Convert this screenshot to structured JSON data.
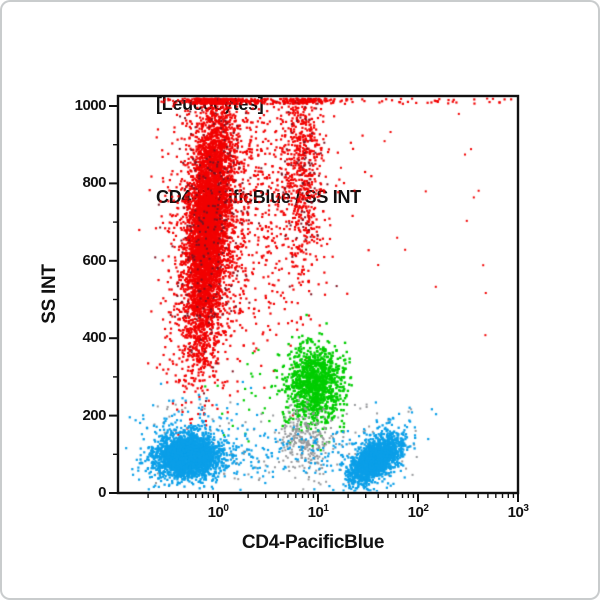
{
  "chart_data": {
    "type": "scatter",
    "title": "[Leucocytes]",
    "subtitle": "CD4-PacificBlue / SS INT",
    "xlabel": "CD4-PacificBlue",
    "ylabel": "SS INT",
    "x_scale": "log10",
    "x_range": [
      0.1,
      1000
    ],
    "x_tick_base": "10",
    "x_tick_exponents": [
      0,
      1,
      2,
      3
    ],
    "y_scale": "linear",
    "y_range": [
      0,
      1023
    ],
    "y_major_ticks": [
      0,
      200,
      400,
      600,
      800,
      1000
    ],
    "y_minor_step": 100,
    "grid": false,
    "legend": false,
    "colors": {
      "granulocytes": "#f20000",
      "doublets_dark": "#7d1220",
      "monocytes": "#00cd00",
      "lymphocytes": "#0b9fe8",
      "debris": "#97999c",
      "axis": "#111111",
      "frame": "#c9cccd"
    },
    "populations": [
      {
        "name": "red-scatter",
        "color": "#f20000",
        "n": 780,
        "size": 2.2,
        "pileup": true,
        "log": {
          "type": "gauss",
          "mean": 0.37,
          "sd": 0.37
        },
        "ss": {
          "type": "gauss",
          "mean": 760,
          "sd": 195
        }
      },
      {
        "name": "eosinophils-column",
        "color": "#f20000",
        "n": 620,
        "size": 2.2,
        "pileup": true,
        "log": {
          "type": "gauss",
          "mean": 0.84,
          "sd": 0.105
        },
        "ss": {
          "type": "gauss",
          "mean": 845,
          "sd": 135
        }
      },
      {
        "name": "eosinophils-dark",
        "color": "#7d1220",
        "n": 90,
        "size": 2.0,
        "pileup": true,
        "log": {
          "type": "gauss",
          "mean": 0.85,
          "sd": 0.12
        },
        "ss": {
          "type": "gauss",
          "mean": 840,
          "sd": 150
        }
      },
      {
        "name": "granulocytes-halo",
        "color": "#f20000",
        "n": 1700,
        "size": 2.2,
        "pileup": true,
        "tilt_log_per_ss": 0.00028,
        "log": {
          "type": "gauss",
          "mean": -0.1,
          "sd": 0.175
        },
        "ss": {
          "type": "gauss",
          "mean": 680,
          "sd": 185
        }
      },
      {
        "name": "granulocytes-core",
        "color": "#f20000",
        "n": 4200,
        "size": 2.2,
        "pileup": true,
        "tilt_log_per_ss": 0.00028,
        "log": {
          "type": "gauss",
          "mean": -0.1,
          "sd": 0.095
        },
        "ss": {
          "type": "gauss",
          "mean": 690,
          "sd": 165
        }
      },
      {
        "name": "granulocyte-doublets-dark",
        "color": "#7d1220",
        "n": 260,
        "size": 2.0,
        "pileup": true,
        "tilt_log_per_ss": 0.00028,
        "log": {
          "type": "gauss",
          "mean": -0.07,
          "sd": 0.19
        },
        "ss": {
          "type": "gauss",
          "mean": 700,
          "sd": 190
        }
      },
      {
        "name": "offscale-pileup-row",
        "color": "#f20000",
        "n": 240,
        "size": 2.2,
        "log": {
          "type": "mix",
          "comps": [
            {
              "w": 0.5,
              "type": "gauss",
              "mean": -0.04,
              "sd": 0.14
            },
            {
              "w": 0.27,
              "type": "gauss",
              "mean": 0.84,
              "sd": 0.2
            },
            {
              "w": 0.23,
              "type": "uniform",
              "min": -0.5,
              "max": 2.97
            }
          ]
        },
        "ss": {
          "type": "uniform",
          "min": 1005,
          "max": 1020
        }
      },
      {
        "name": "red-rare",
        "color": "#f20000",
        "n": 18,
        "size": 2.0,
        "log": {
          "type": "uniform",
          "min": 1.1,
          "max": 2.7
        },
        "ss": {
          "type": "uniform",
          "min": 380,
          "max": 980
        }
      },
      {
        "name": "monocyte-stragglers",
        "color": "#00cd00",
        "n": 45,
        "size": 2.2,
        "log": {
          "type": "gauss",
          "mean": 0.55,
          "sd": 0.3
        },
        "ss": {
          "type": "gauss",
          "mean": 235,
          "sd": 60
        }
      },
      {
        "name": "monocytes",
        "color": "#00cd00",
        "n": 1150,
        "size": 2.4,
        "log": {
          "type": "gauss",
          "mean": 0.97,
          "sd": 0.135
        },
        "ss": {
          "type": "gauss",
          "mean": 280,
          "sd": 52
        }
      },
      {
        "name": "debris-gray",
        "color": "#97999c",
        "n": 260,
        "size": 2.0,
        "log": {
          "type": "gauss",
          "mean": 0.88,
          "sd": 0.14
        },
        "ss": {
          "type": "gauss",
          "mean": 135,
          "sd": 42
        }
      },
      {
        "name": "gray-sparse",
        "color": "#97999c",
        "n": 130,
        "size": 2.0,
        "log": {
          "type": "uniform",
          "min": -0.7,
          "max": 2.0
        },
        "ss": {
          "type": "uniform",
          "min": 25,
          "max": 235
        }
      },
      {
        "name": "blue-bridge",
        "color": "#0b9fe8",
        "n": 150,
        "size": 2.2,
        "log": {
          "type": "uniform",
          "min": 0.0,
          "max": 1.32
        },
        "ss": {
          "type": "gauss",
          "mean": 100,
          "sd": 38
        }
      },
      {
        "name": "lymphocyte-cd4neg-halo",
        "color": "#0b9fe8",
        "n": 340,
        "size": 2.2,
        "log": {
          "type": "gauss",
          "mean": -0.3,
          "sd": 0.26
        },
        "ss": {
          "type": "gauss",
          "mean": 115,
          "sd": 55
        }
      },
      {
        "name": "lymphocytes-cd4neg",
        "color": "#0b9fe8",
        "n": 2500,
        "size": 2.3,
        "log": {
          "type": "gauss",
          "mean": -0.3,
          "sd": 0.155
        },
        "ss": {
          "type": "gauss",
          "mean": 95,
          "sd": 26
        }
      },
      {
        "name": "lymphocyte-cd4pos-halo",
        "color": "#0b9fe8",
        "n": 220,
        "size": 2.2,
        "corr_ss_per_log": 110,
        "log": {
          "type": "gauss",
          "mean": 1.57,
          "sd": 0.2
        },
        "ss": {
          "type": "gauss",
          "mean": 95,
          "sd": 45
        }
      },
      {
        "name": "lymphocytes-cd4pos",
        "color": "#0b9fe8",
        "n": 1750,
        "size": 2.3,
        "corr_ss_per_log": 135,
        "log": {
          "type": "gauss",
          "mean": 1.57,
          "sd": 0.12
        },
        "ss": {
          "type": "gauss",
          "mean": 84,
          "sd": 24
        }
      }
    ]
  }
}
